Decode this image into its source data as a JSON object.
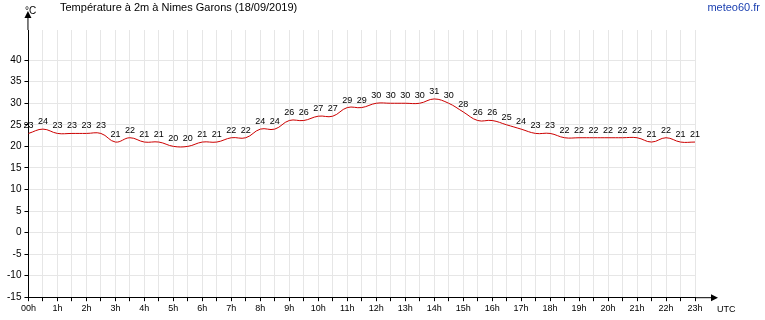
{
  "chart_data": {
    "type": "line",
    "title": "Température à 2m à Nimes Garons (18/09/2019)",
    "source": "meteo60.fr",
    "y_label": "°C",
    "x_label": "UTC",
    "categories": [
      "00h",
      null,
      "1h",
      null,
      "2h",
      null,
      "3h",
      null,
      "4h",
      null,
      "5h",
      null,
      "6h",
      null,
      "7h",
      null,
      "8h",
      null,
      "9h",
      null,
      "10h",
      null,
      "11h",
      null,
      "12h",
      null,
      "13h",
      null,
      "14h",
      null,
      "15h",
      null,
      "16h",
      null,
      "17h",
      null,
      "18h",
      null,
      "19h",
      null,
      "20h",
      null,
      "21h",
      null,
      "22h",
      null,
      "23h"
    ],
    "values": [
      23,
      24,
      23,
      23,
      23,
      23,
      21,
      22,
      21,
      21,
      20,
      20,
      21,
      21,
      22,
      22,
      24,
      24,
      26,
      26,
      27,
      27,
      29,
      29,
      30,
      30,
      30,
      30,
      31,
      30,
      28,
      26,
      26,
      25,
      24,
      23,
      23,
      22,
      22,
      22,
      22,
      22,
      22,
      21,
      22,
      21,
      21
    ],
    "color": "#cc0000",
    "ylim": [
      -15,
      47
    ],
    "yticks": [
      -15,
      -10,
      -5,
      0,
      5,
      10,
      15,
      20,
      25,
      30,
      35,
      40
    ],
    "grid": true,
    "data_labels": true
  }
}
